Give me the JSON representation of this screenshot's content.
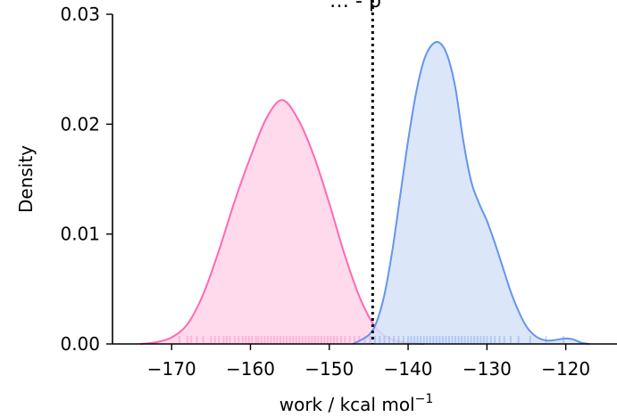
{
  "chart_data": {
    "type": "area",
    "title": "… - p",
    "xlabel": "work / kcal mol",
    "xlabel_sup": "−1",
    "ylabel": "Density",
    "xlim": [
      -177.5,
      -113.5
    ],
    "ylim": [
      0,
      0.03
    ],
    "x_ticks": [
      -170,
      -160,
      -150,
      -140,
      -130,
      -120
    ],
    "x_tick_labels": [
      "−170",
      "−160",
      "−150",
      "−140",
      "−130",
      "−120"
    ],
    "y_ticks": [
      0,
      0.01,
      0.02,
      0.03
    ],
    "y_tick_labels": [
      "0.00",
      "0.01",
      "0.02",
      "0.03"
    ],
    "grid": false,
    "vline": {
      "x": -144.5,
      "style": "dotted",
      "color": "#000000"
    },
    "series": [
      {
        "color": "#ff69b4",
        "fill": "#ffd3ea",
        "x": [
          -174,
          -172,
          -170,
          -168,
          -166,
          -164,
          -162,
          -160,
          -158,
          -156,
          -154,
          -152,
          -150,
          -148,
          -146,
          -144,
          -142,
          -140,
          -138
        ],
        "y": [
          0.0,
          0.00015,
          0.0006,
          0.0018,
          0.0045,
          0.0085,
          0.013,
          0.017,
          0.0205,
          0.0222,
          0.0205,
          0.0172,
          0.0128,
          0.008,
          0.004,
          0.0014,
          0.0004,
          0.0001,
          0.0
        ],
        "rug": [
          -169,
          -168,
          -167.5,
          -166.8,
          -166,
          -165,
          -164.5,
          -164,
          -163.4,
          -163,
          -162.6,
          -162,
          -161.5,
          -161,
          -160.6,
          -160.2,
          -159.8,
          -159.3,
          -159,
          -158.6,
          -158.2,
          -157.8,
          -157.4,
          -157,
          -156.6,
          -156.2,
          -155.8,
          -155.4,
          -155,
          -154.6,
          -154.2,
          -153.8,
          -153.4,
          -153,
          -152.6,
          -152.2,
          -151.8,
          -151.4,
          -151,
          -150.6,
          -150.2,
          -149.8,
          -149.4,
          -149,
          -148.5,
          -148,
          -147.4,
          -146.8,
          -146.2,
          -145.5,
          -144.8
        ]
      },
      {
        "color": "#6495ed",
        "fill": "#d5e2f8",
        "x": [
          -147,
          -145,
          -144,
          -143,
          -142,
          -141,
          -140,
          -139,
          -138,
          -137,
          -136,
          -135,
          -134,
          -133,
          -132,
          -131,
          -130,
          -129,
          -128,
          -127,
          -126,
          -125,
          -124,
          -123,
          -122,
          -121,
          -120,
          -119,
          -118,
          -117
        ],
        "y": [
          0.0,
          0.0008,
          0.002,
          0.0045,
          0.0085,
          0.0135,
          0.0185,
          0.0228,
          0.0258,
          0.0272,
          0.0274,
          0.0262,
          0.0233,
          0.0185,
          0.0148,
          0.0128,
          0.0112,
          0.0092,
          0.007,
          0.0048,
          0.003,
          0.0016,
          0.0008,
          0.0004,
          0.0003,
          0.0004,
          0.0005,
          0.0004,
          0.0001,
          0.0
        ],
        "rug": [
          -144.2,
          -143.6,
          -143,
          -142.4,
          -141.8,
          -141.2,
          -140.6,
          -140,
          -139.6,
          -139.2,
          -138.8,
          -138.4,
          -138,
          -137.6,
          -137.2,
          -136.8,
          -136.4,
          -136,
          -135.6,
          -135.2,
          -134.8,
          -134.4,
          -134,
          -133.6,
          -133.2,
          -132.8,
          -132.4,
          -132,
          -131.6,
          -131.2,
          -130.8,
          -130.4,
          -130,
          -129.5,
          -129,
          -128.4,
          -127.8,
          -127,
          -126,
          -124.5,
          -122.5,
          -120.3
        ]
      }
    ]
  }
}
